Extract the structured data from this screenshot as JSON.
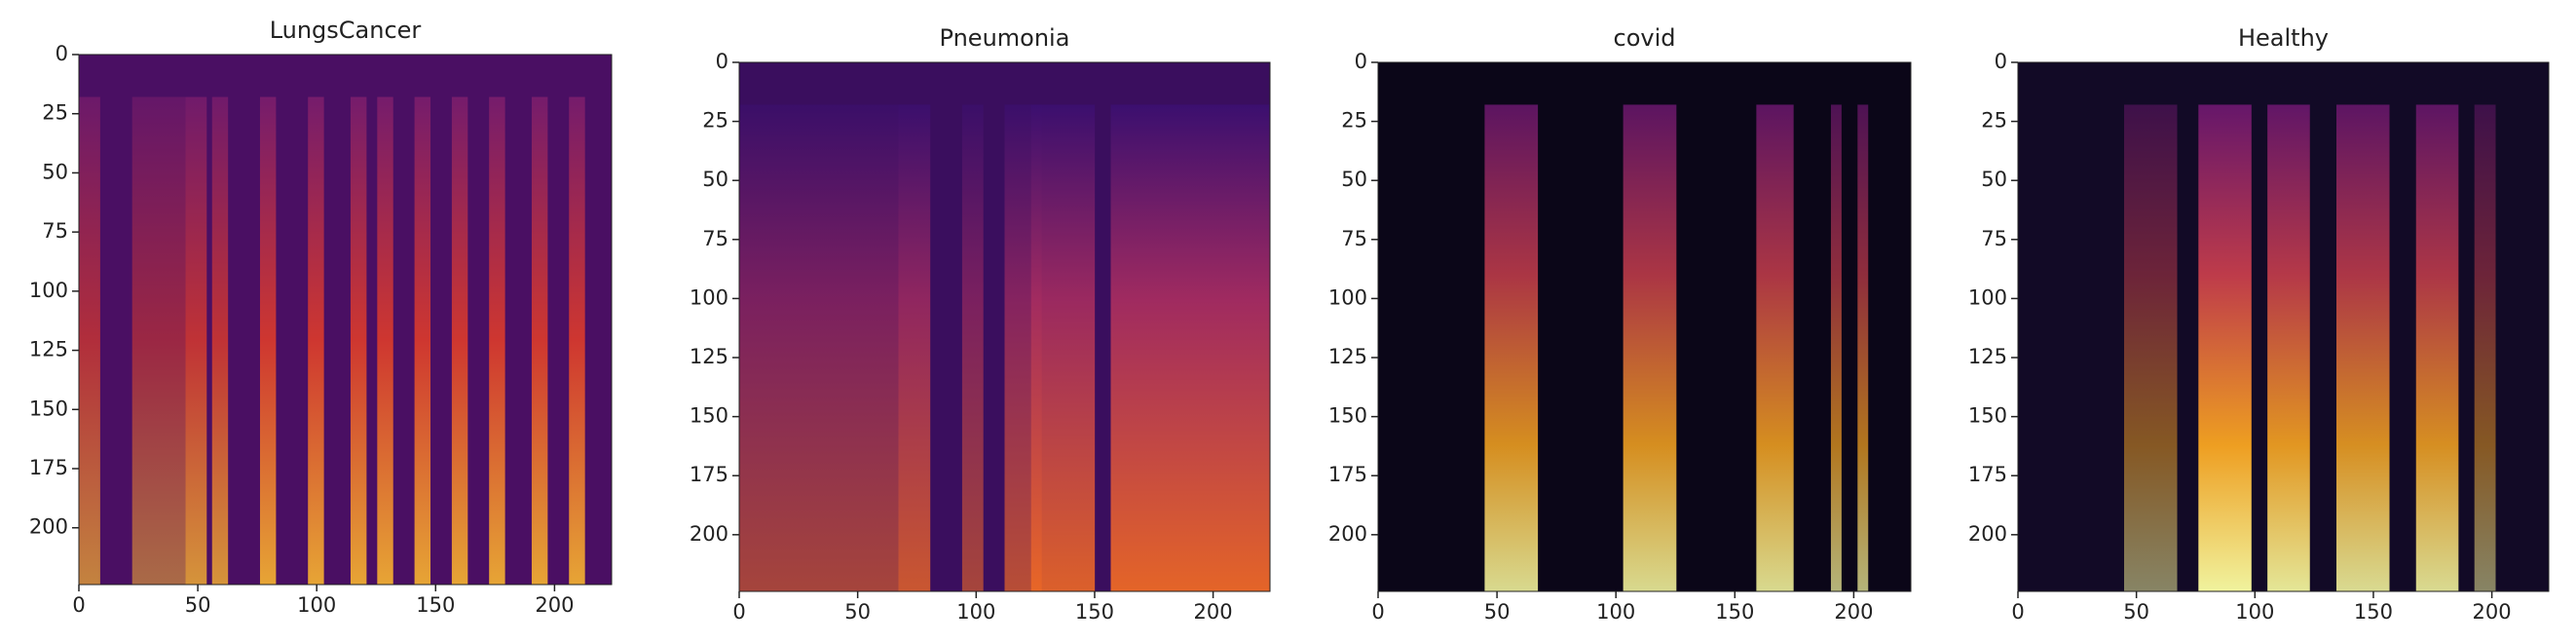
{
  "chart_data": [
    {
      "type": "image",
      "title": "LungsCancer",
      "xlim": [
        0,
        224
      ],
      "ylim": [
        224,
        0
      ],
      "xticks": [
        0,
        50,
        100,
        150,
        200
      ],
      "yticks": [
        0,
        25,
        50,
        75,
        100,
        125,
        150,
        175,
        200
      ]
    },
    {
      "type": "image",
      "title": "Pneumonia",
      "xlim": [
        0,
        224
      ],
      "ylim": [
        224,
        0
      ],
      "xticks": [
        0,
        50,
        100,
        150,
        200
      ],
      "yticks": [
        0,
        25,
        50,
        75,
        100,
        125,
        150,
        175,
        200
      ]
    },
    {
      "type": "image",
      "title": "covid",
      "xlim": [
        0,
        224
      ],
      "ylim": [
        224,
        0
      ],
      "xticks": [
        0,
        50,
        100,
        150,
        200
      ],
      "yticks": [
        0,
        25,
        50,
        75,
        100,
        125,
        150,
        175,
        200
      ]
    },
    {
      "type": "image",
      "title": "Healthy",
      "xlim": [
        0,
        224
      ],
      "ylim": [
        224,
        0
      ],
      "xticks": [
        0,
        50,
        100,
        150,
        200
      ],
      "yticks": [
        0,
        25,
        50,
        75,
        100,
        125,
        150,
        175,
        200
      ]
    }
  ]
}
